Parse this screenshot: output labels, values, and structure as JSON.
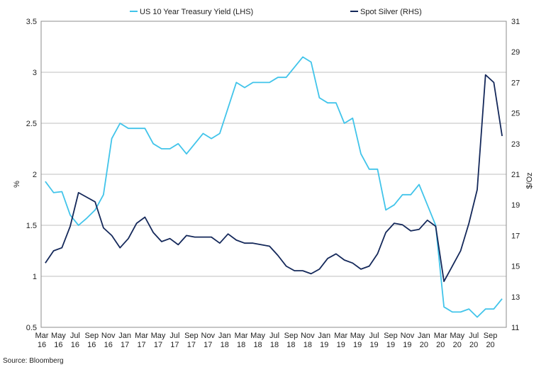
{
  "chart_data": {
    "type": "line",
    "legend": {
      "placement": "top-center"
    },
    "grid": true,
    "source": "Source: Bloomberg",
    "left_axis": {
      "title": "%",
      "min": 0.5,
      "max": 3.5,
      "ticks": [
        0.5,
        1,
        1.5,
        2,
        2.5,
        3,
        3.5
      ],
      "tick_labels": [
        "0.5",
        "1",
        "1.5",
        "2",
        "2.5",
        "3",
        "3.5"
      ]
    },
    "right_axis": {
      "title": "$/Oz",
      "min": 11,
      "max": 31,
      "ticks": [
        11,
        13,
        15,
        17,
        19,
        21,
        23,
        25,
        27,
        29,
        31
      ],
      "tick_labels": [
        "11",
        "13",
        "15",
        "17",
        "19",
        "21",
        "23",
        "25",
        "27",
        "29",
        "31"
      ]
    },
    "x_axis": {
      "start": "2016-03",
      "end": "2020-10",
      "ticks": [
        {
          "month": "Mar",
          "year": "16"
        },
        {
          "month": "May",
          "year": "16"
        },
        {
          "month": "Jul",
          "year": "16"
        },
        {
          "month": "Sep",
          "year": "16"
        },
        {
          "month": "Nov",
          "year": "16"
        },
        {
          "month": "Jan",
          "year": "17"
        },
        {
          "month": "Mar",
          "year": "17"
        },
        {
          "month": "May",
          "year": "17"
        },
        {
          "month": "Jul",
          "year": "17"
        },
        {
          "month": "Sep",
          "year": "17"
        },
        {
          "month": "Nov",
          "year": "17"
        },
        {
          "month": "Jan",
          "year": "18"
        },
        {
          "month": "Mar",
          "year": "18"
        },
        {
          "month": "May",
          "year": "18"
        },
        {
          "month": "Jul",
          "year": "18"
        },
        {
          "month": "Sep",
          "year": "18"
        },
        {
          "month": "Nov",
          "year": "18"
        },
        {
          "month": "Jan",
          "year": "19"
        },
        {
          "month": "Mar",
          "year": "19"
        },
        {
          "month": "May",
          "year": "19"
        },
        {
          "month": "Jul",
          "year": "19"
        },
        {
          "month": "Sep",
          "year": "19"
        },
        {
          "month": "Nov",
          "year": "19"
        },
        {
          "month": "Jan",
          "year": "20"
        },
        {
          "month": "Mar",
          "year": "20"
        },
        {
          "month": "May",
          "year": "20"
        },
        {
          "month": "Jul",
          "year": "20"
        },
        {
          "month": "Sep",
          "year": "20"
        }
      ]
    },
    "series": [
      {
        "name": "US 10 Year Treasury Yield (LHS)",
        "axis": "left",
        "color": "#41c4ea",
        "x": [
          "2016-03",
          "2016-04",
          "2016-05",
          "2016-06",
          "2016-07",
          "2016-08",
          "2016-09",
          "2016-10",
          "2016-11",
          "2016-12",
          "2017-01",
          "2017-02",
          "2017-03",
          "2017-04",
          "2017-05",
          "2017-06",
          "2017-07",
          "2017-08",
          "2017-09",
          "2017-10",
          "2017-11",
          "2017-12",
          "2018-01",
          "2018-02",
          "2018-03",
          "2018-04",
          "2018-05",
          "2018-06",
          "2018-07",
          "2018-08",
          "2018-09",
          "2018-10",
          "2018-11",
          "2018-12",
          "2019-01",
          "2019-02",
          "2019-03",
          "2019-04",
          "2019-05",
          "2019-06",
          "2019-07",
          "2019-08",
          "2019-09",
          "2019-10",
          "2019-11",
          "2019-12",
          "2020-01",
          "2020-02",
          "2020-03",
          "2020-04",
          "2020-05",
          "2020-06",
          "2020-07",
          "2020-08",
          "2020-09",
          "2020-10"
        ],
        "y": [
          1.93,
          1.82,
          1.83,
          1.6,
          1.5,
          1.57,
          1.65,
          1.8,
          2.35,
          2.5,
          2.45,
          2.45,
          2.45,
          2.3,
          2.25,
          2.25,
          2.3,
          2.2,
          2.3,
          2.4,
          2.35,
          2.4,
          2.65,
          2.9,
          2.85,
          2.9,
          2.9,
          2.9,
          2.95,
          2.95,
          3.05,
          3.15,
          3.1,
          2.75,
          2.7,
          2.7,
          2.5,
          2.55,
          2.2,
          2.05,
          2.05,
          1.65,
          1.7,
          1.8,
          1.8,
          1.9,
          1.7,
          1.5,
          0.7,
          0.65,
          0.65,
          0.68,
          0.6,
          0.68,
          0.68,
          0.78
        ]
      },
      {
        "name": "Spot Silver (RHS)",
        "axis": "right",
        "color": "#14285a",
        "x": [
          "2016-03",
          "2016-04",
          "2016-05",
          "2016-06",
          "2016-07",
          "2016-08",
          "2016-09",
          "2016-10",
          "2016-11",
          "2016-12",
          "2017-01",
          "2017-02",
          "2017-03",
          "2017-04",
          "2017-05",
          "2017-06",
          "2017-07",
          "2017-08",
          "2017-09",
          "2017-10",
          "2017-11",
          "2017-12",
          "2018-01",
          "2018-02",
          "2018-03",
          "2018-04",
          "2018-05",
          "2018-06",
          "2018-07",
          "2018-08",
          "2018-09",
          "2018-10",
          "2018-11",
          "2018-12",
          "2019-01",
          "2019-02",
          "2019-03",
          "2019-04",
          "2019-05",
          "2019-06",
          "2019-07",
          "2019-08",
          "2019-09",
          "2019-10",
          "2019-11",
          "2019-12",
          "2020-01",
          "2020-02",
          "2020-03",
          "2020-04",
          "2020-05",
          "2020-06",
          "2020-07",
          "2020-08",
          "2020-09",
          "2020-10"
        ],
        "y": [
          15.2,
          16.0,
          16.2,
          17.6,
          19.8,
          19.5,
          19.2,
          17.5,
          17.0,
          16.2,
          16.8,
          17.8,
          18.2,
          17.2,
          16.6,
          16.8,
          16.4,
          17.0,
          16.9,
          16.9,
          16.9,
          16.5,
          17.1,
          16.7,
          16.5,
          16.5,
          16.4,
          16.3,
          15.7,
          15.0,
          14.7,
          14.7,
          14.5,
          14.8,
          15.5,
          15.8,
          15.4,
          15.2,
          14.8,
          15.0,
          15.8,
          17.2,
          17.8,
          17.7,
          17.3,
          17.4,
          18.0,
          17.6,
          14.0,
          15.0,
          16.0,
          17.8,
          20.0,
          27.5,
          27.0,
          23.5
        ]
      }
    ]
  }
}
